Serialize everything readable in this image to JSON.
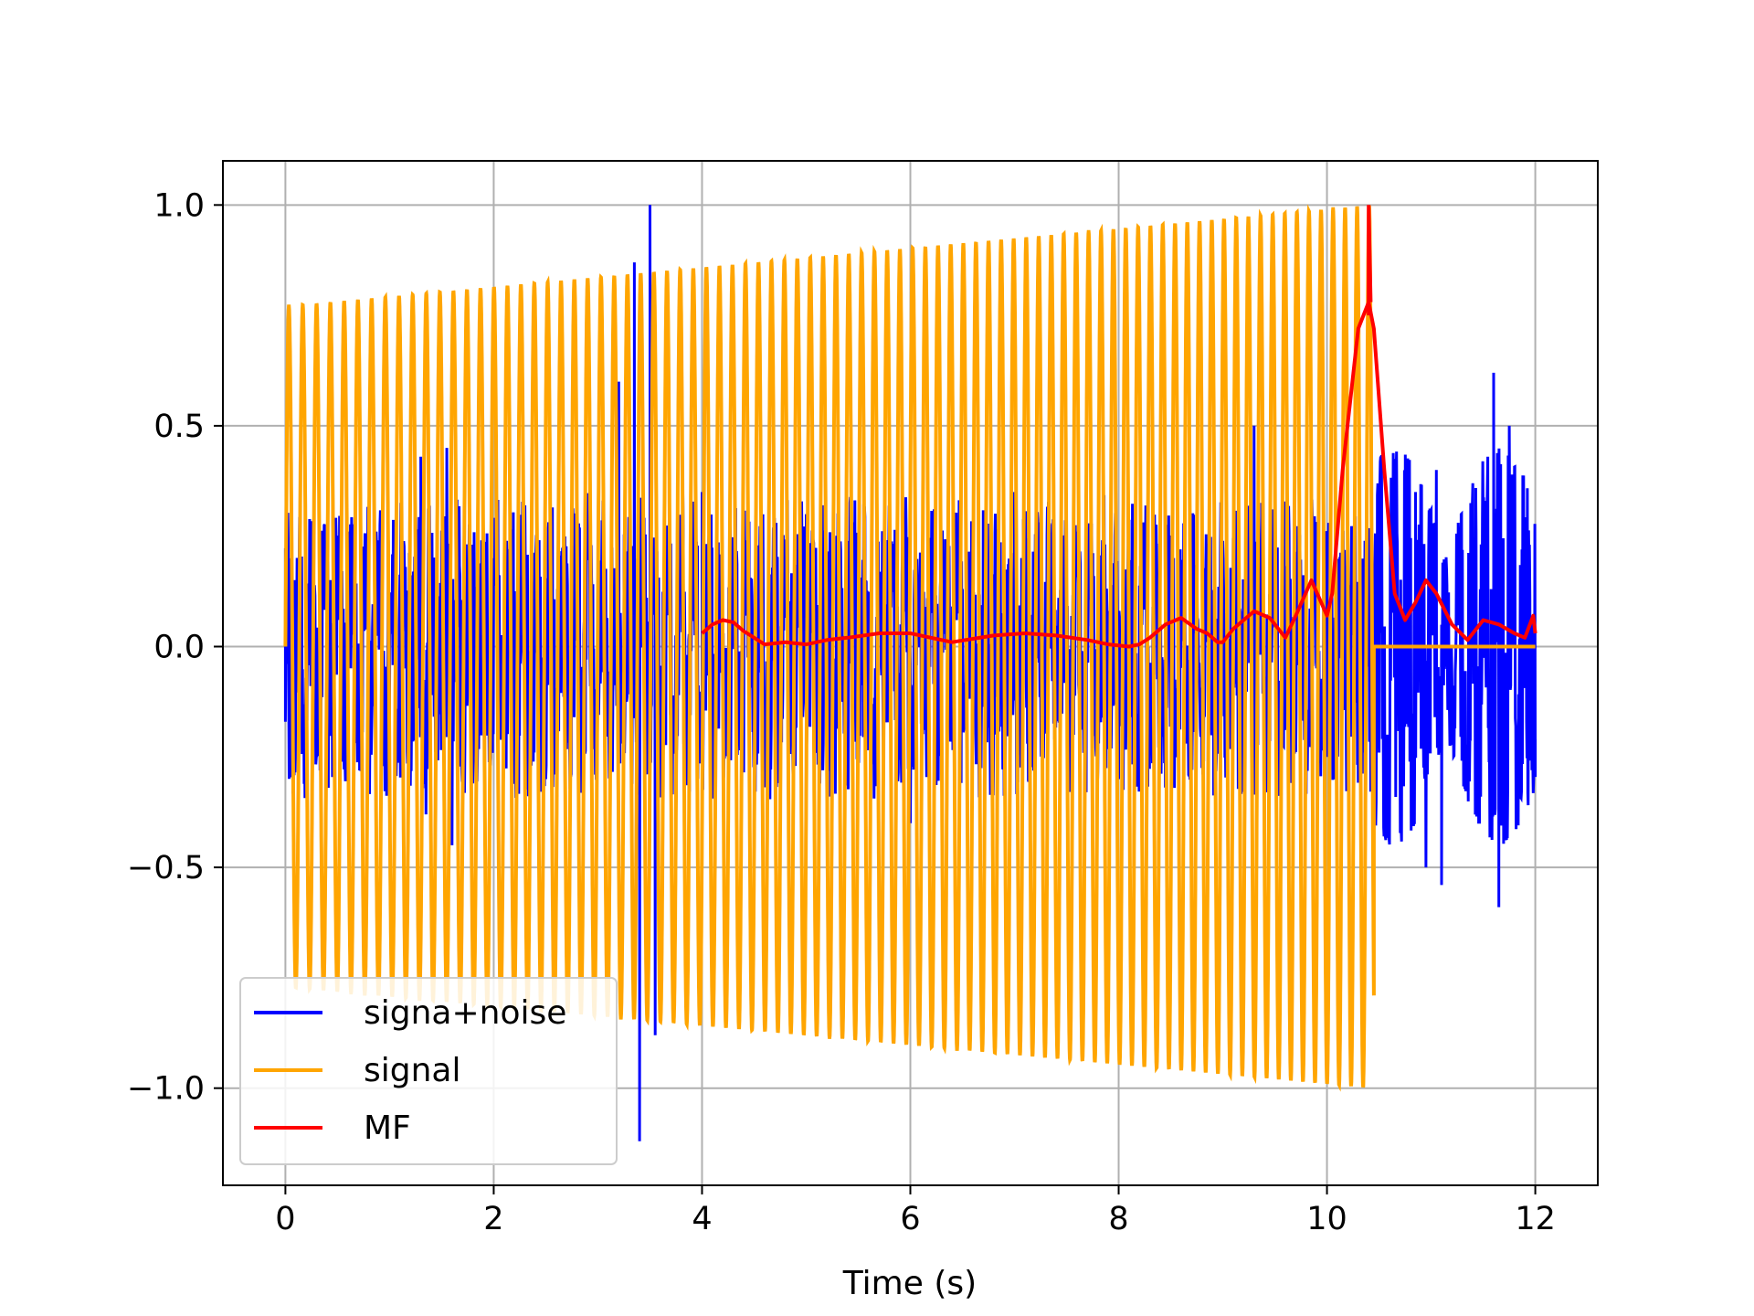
{
  "chart_data": {
    "type": "line",
    "xlabel": "Time (s)",
    "ylabel": "",
    "xlim": [
      -0.6,
      12.6
    ],
    "ylim": [
      -1.22,
      1.1
    ],
    "xticks": [
      0,
      2,
      4,
      6,
      8,
      10,
      12
    ],
    "xtick_labels": [
      "0",
      "2",
      "4",
      "6",
      "8",
      "10",
      "12"
    ],
    "yticks": [
      1.0,
      0.5,
      0.0,
      -0.5,
      -1.0
    ],
    "ytick_labels": [
      "1.0",
      "0.5",
      "0.0",
      "−0.5",
      "−1.0"
    ],
    "grid": true,
    "legend": {
      "location": "lower-left",
      "entries": [
        {
          "label": "signa+noise",
          "color": "#0000ff"
        },
        {
          "label": "signal",
          "color": "#ffa500"
        },
        {
          "label": "MF",
          "color": "#ff0000"
        }
      ]
    },
    "series": [
      {
        "name": "signa+noise",
        "color": "#0000ff",
        "description_values": "noisy oscillation",
        "x_range": [
          0,
          12
        ],
        "envelope_points": [
          [
            0.0,
            -0.17
          ],
          [
            0.05,
            0.2
          ],
          [
            0.3,
            -0.25
          ],
          [
            0.6,
            0.2
          ],
          [
            1.3,
            0.43
          ],
          [
            1.35,
            -0.38
          ],
          [
            1.55,
            0.45
          ],
          [
            1.6,
            -0.45
          ],
          [
            2.3,
            0.32
          ],
          [
            2.5,
            -0.3
          ],
          [
            3.2,
            0.6
          ],
          [
            3.35,
            0.87
          ],
          [
            3.4,
            -1.12
          ],
          [
            3.5,
            1.0
          ],
          [
            3.55,
            -0.88
          ],
          [
            4.0,
            0.35
          ],
          [
            5.0,
            0.3
          ],
          [
            6.0,
            -0.4
          ],
          [
            7.0,
            0.35
          ],
          [
            8.0,
            -0.3
          ],
          [
            9.3,
            0.5
          ],
          [
            10.0,
            -0.25
          ],
          [
            10.5,
            0.28
          ],
          [
            10.5,
            -0.24
          ],
          [
            10.85,
            0.35
          ],
          [
            10.95,
            -0.5
          ],
          [
            11.05,
            0.4
          ],
          [
            11.1,
            -0.54
          ],
          [
            11.6,
            0.62
          ],
          [
            11.65,
            -0.59
          ],
          [
            11.75,
            0.5
          ],
          [
            12.0,
            -0.21
          ]
        ]
      },
      {
        "name": "signal",
        "color": "#ffa500",
        "description_values": "chirp, amplitude 0.77 at t=0 rising to 1.0 at t=10.4, then 0",
        "amplitude_start": 0.77,
        "amplitude_end": 1.0,
        "t_start": 0.0,
        "t_end": 10.45,
        "frequency_start_hz": 7.5,
        "frequency_end_hz": 8.7
      },
      {
        "name": "MF",
        "color": "#ff0000",
        "x": [
          4.0,
          4.1,
          4.2,
          4.3,
          4.4,
          4.5,
          4.6,
          4.8,
          5.0,
          5.2,
          5.4,
          5.7,
          6.0,
          6.4,
          6.8,
          7.1,
          7.4,
          7.7,
          7.9,
          8.1,
          8.2,
          8.3,
          8.45,
          8.6,
          8.75,
          8.85,
          8.9,
          8.95,
          9.0,
          9.1,
          9.3,
          9.45,
          9.6,
          9.7,
          9.85,
          10.0,
          10.05,
          10.15,
          10.3,
          10.4,
          10.45,
          10.55,
          10.65,
          10.75,
          10.85,
          10.95,
          11.05,
          11.2,
          11.35,
          11.5,
          11.65,
          11.8,
          11.9,
          11.98,
          12.0
        ],
        "y": [
          0.03,
          0.05,
          0.06,
          0.055,
          0.035,
          0.02,
          0.005,
          0.01,
          0.005,
          0.015,
          0.02,
          0.03,
          0.03,
          0.01,
          0.025,
          0.03,
          0.025,
          0.015,
          0.005,
          0.0,
          0.005,
          0.02,
          0.05,
          0.065,
          0.04,
          0.03,
          0.02,
          0.01,
          0.01,
          0.04,
          0.08,
          0.065,
          0.02,
          0.07,
          0.15,
          0.07,
          0.12,
          0.4,
          0.72,
          0.78,
          0.72,
          0.4,
          0.12,
          0.06,
          0.1,
          0.15,
          0.12,
          0.05,
          0.015,
          0.06,
          0.05,
          0.03,
          0.02,
          0.07,
          0.03
        ]
      }
    ]
  }
}
